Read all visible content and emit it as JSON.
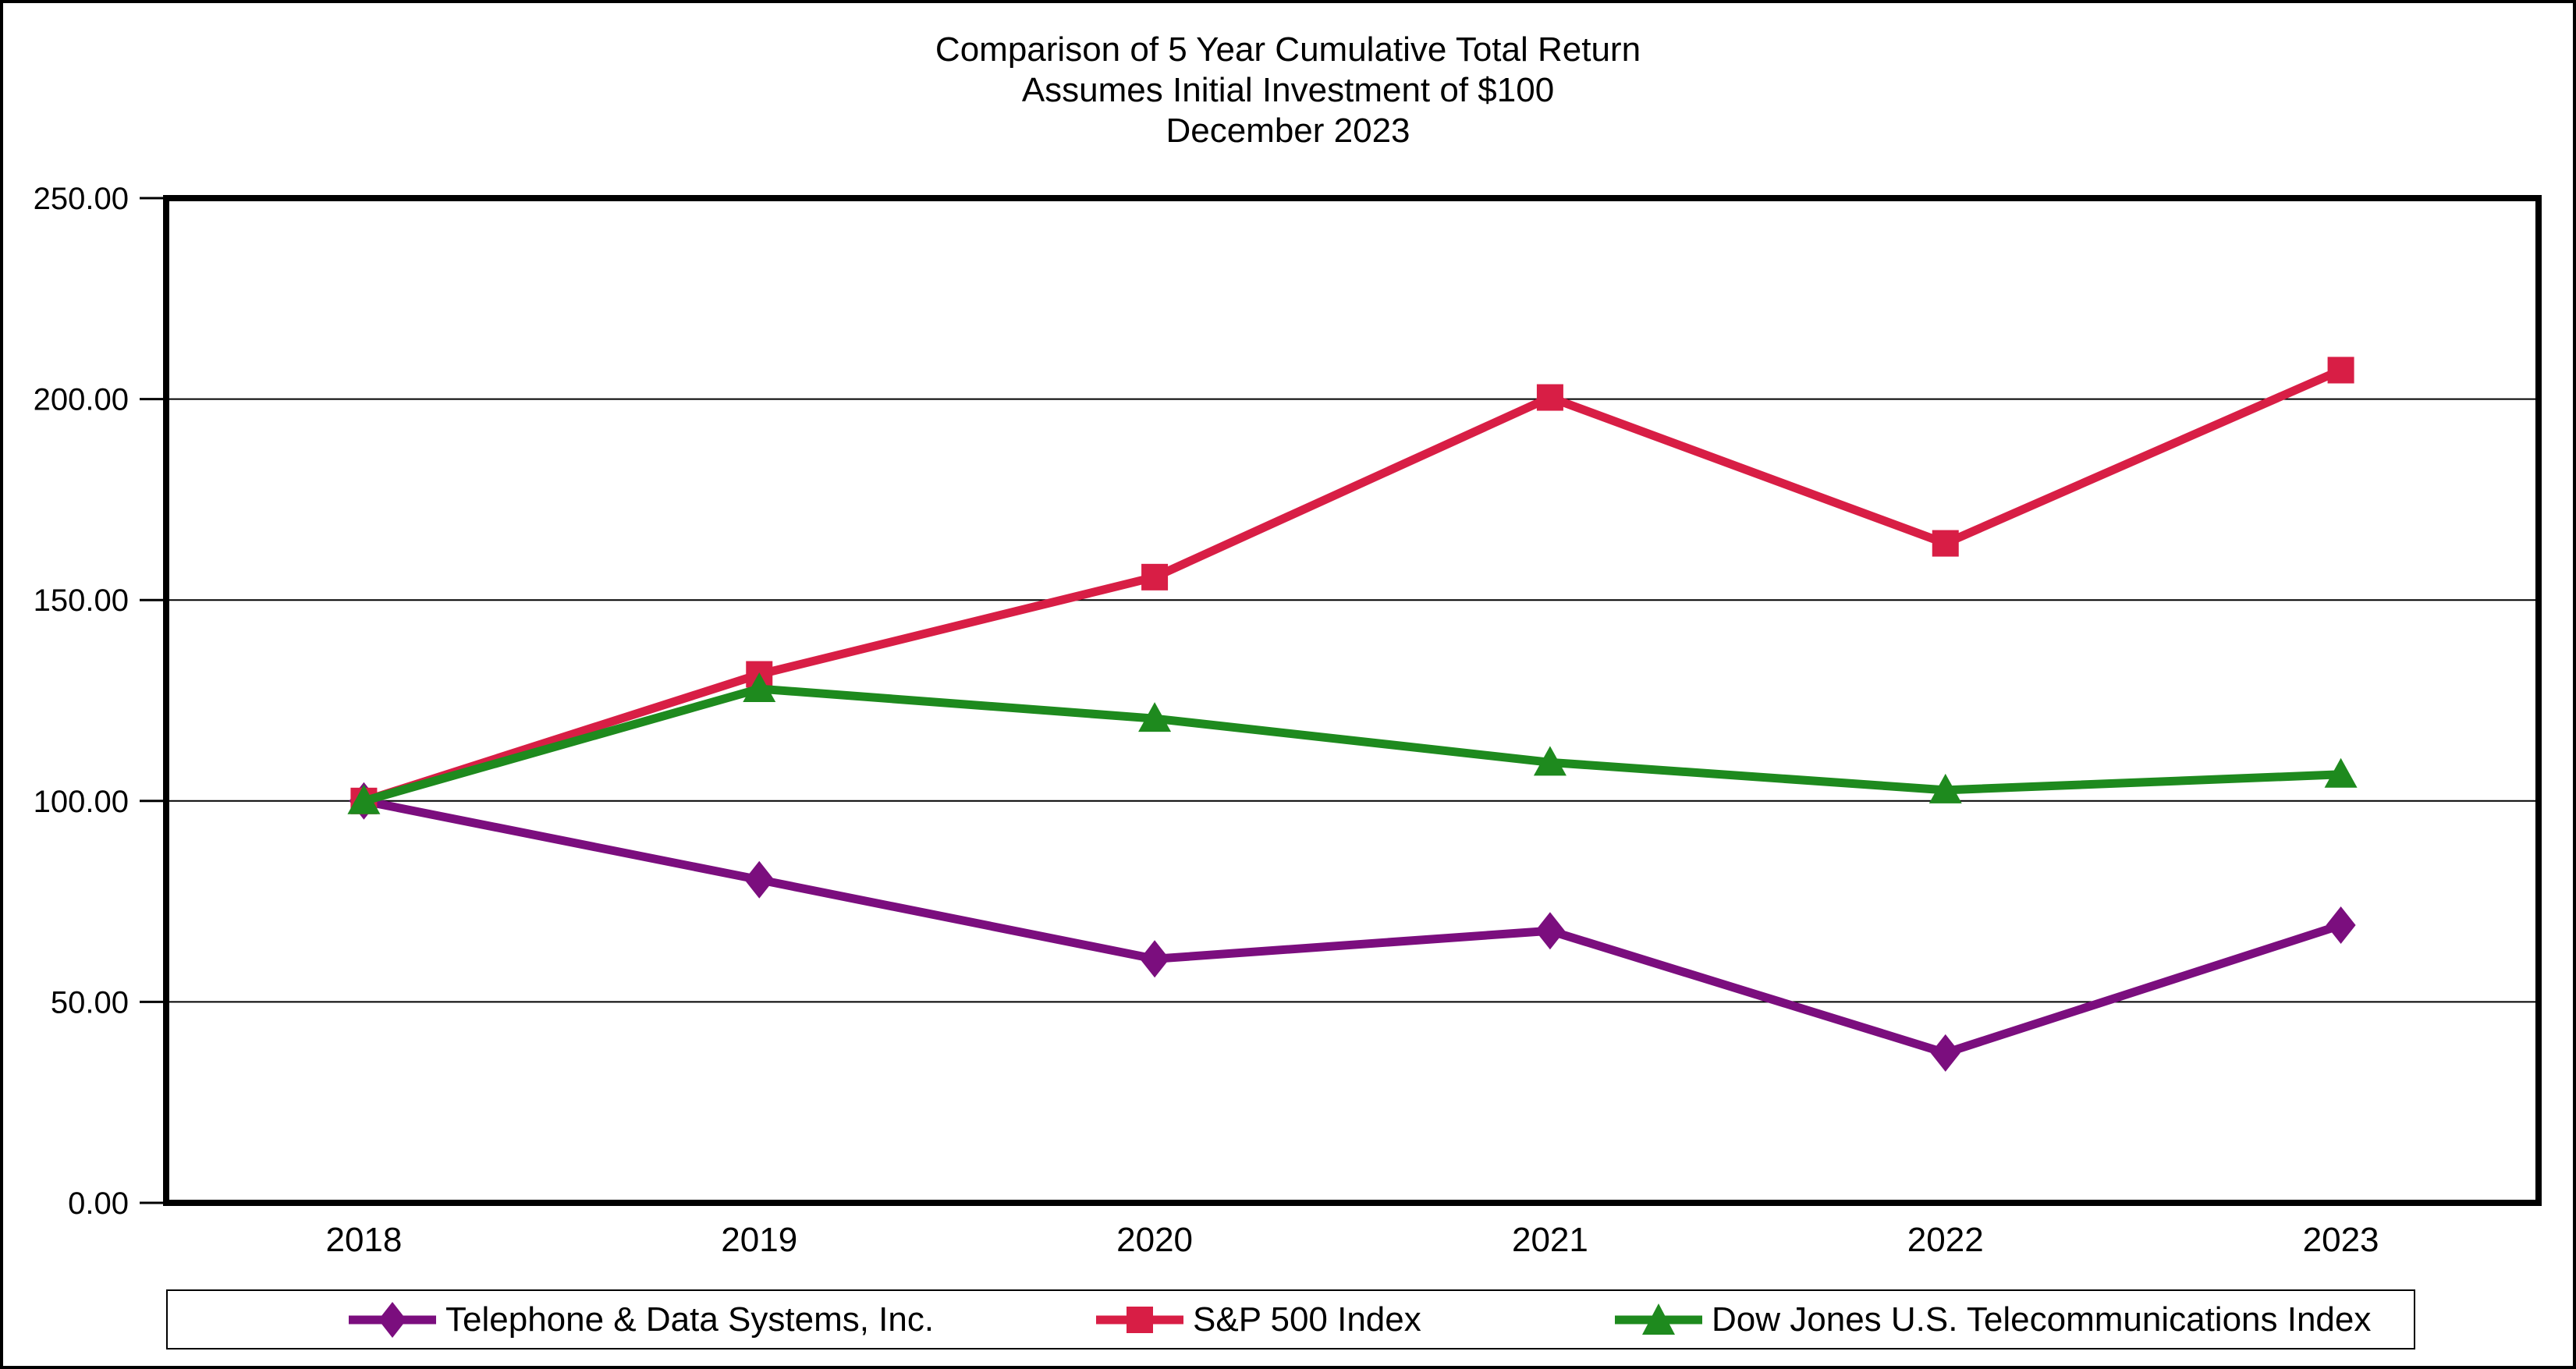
{
  "chart_data": {
    "type": "line",
    "title_lines": [
      "Comparison of 5 Year Cumulative Total Return",
      "Assumes Initial Investment of $100",
      "December 2023"
    ],
    "title": "Comparison of 5 Year Cumulative Total Return",
    "subtitle": "Assumes Initial Investment of $100",
    "date_line": "December 2023",
    "categories": [
      "2018",
      "2019",
      "2020",
      "2021",
      "2022",
      "2023"
    ],
    "series": [
      {
        "name": "Telephone & Data Systems, Inc.",
        "color": "#7B0E7E",
        "marker": "diamond",
        "values": [
          100.0,
          80.4,
          60.7,
          67.7,
          37.3,
          69.1
        ]
      },
      {
        "name": "S&P 500 Index",
        "color": "#D81E45",
        "marker": "square",
        "values": [
          100.0,
          131.5,
          155.7,
          200.4,
          164.1,
          207.2
        ]
      },
      {
        "name": "Dow Jones U.S. Telecommunications Index",
        "color": "#1E8A1E",
        "marker": "triangle",
        "values": [
          100.0,
          127.9,
          120.5,
          109.6,
          102.7,
          106.6
        ]
      }
    ],
    "ylim": [
      0,
      250
    ],
    "ytick_step": 50,
    "ytick_labels": [
      "0.00",
      "50.00",
      "100.00",
      "150.00",
      "200.00",
      "250.00"
    ],
    "grid": true,
    "legend_position": "bottom",
    "axis_color": "#000000",
    "background_color": "#FFFFFF"
  }
}
